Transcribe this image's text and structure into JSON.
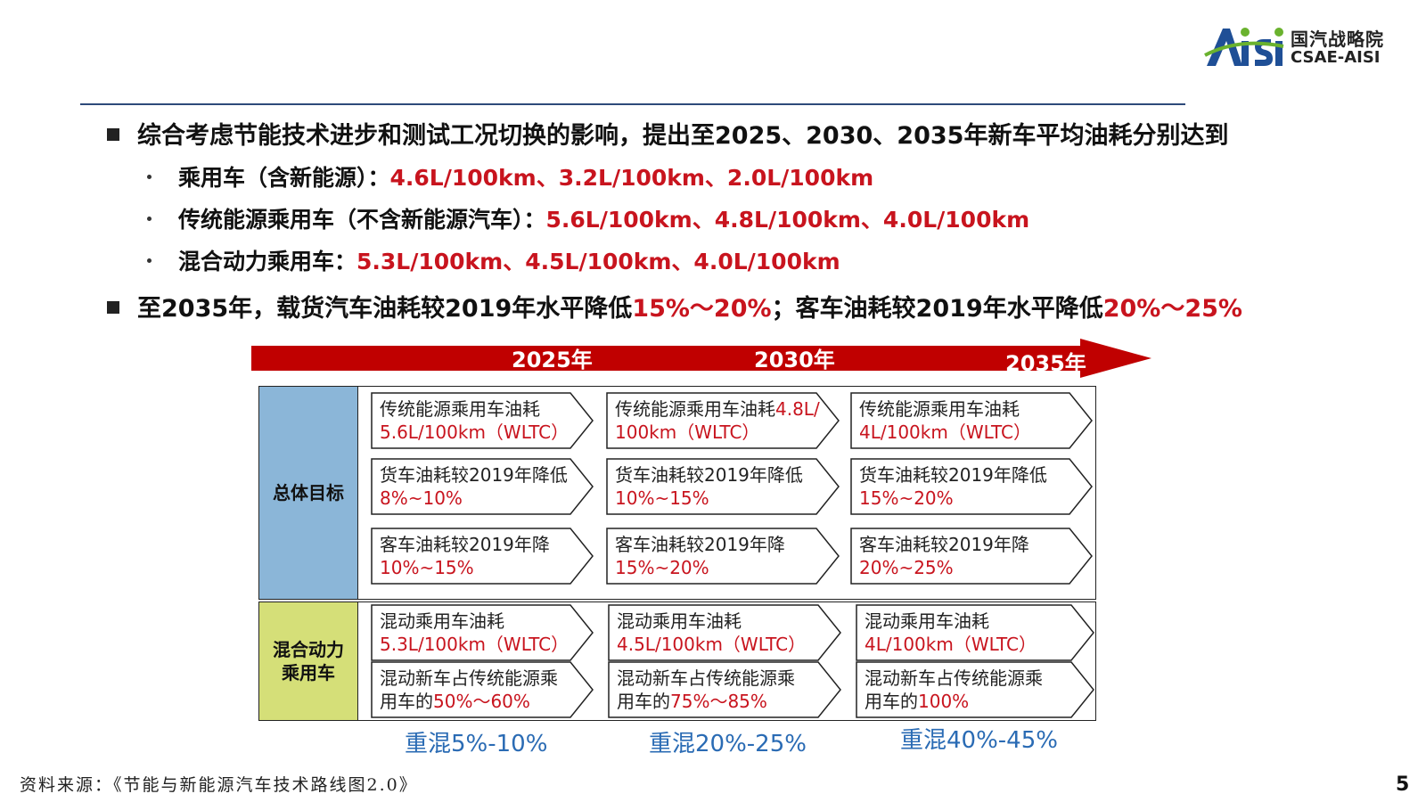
{
  "logo": {
    "mark": "Aisi",
    "cn": "国汽战略院",
    "en": "CSAE-AISI"
  },
  "bullets": {
    "main1": "综合考虑节能技术进步和测试工况切换的影响，提出至2025、2030、2035年新车平均油耗分别达到",
    "sub1_label": "乘用车（含新能源）：",
    "sub1_value": "4.6L/100km、3.2L/100km、2.0L/100km",
    "sub2_label": "传统能源乘用车（不含新能源汽车）：",
    "sub2_value": "5.6L/100km、4.8L/100km、4.0L/100km",
    "sub3_label": "混合动力乘用车：",
    "sub3_value": "5.3L/100km、4.5L/100km、4.0L/100km",
    "main2_a": "至2035年，载货汽车油耗较2019年水平降低",
    "main2_b": "15%～20%",
    "main2_c": "；客车油耗较2019年水平降低",
    "main2_d": "20%～25%"
  },
  "timeline": {
    "years": [
      "2025年",
      "2030年",
      "2035年"
    ]
  },
  "rows": {
    "overall_label": "总体目标",
    "hybrid_label_1": "混合动力",
    "hybrid_label_2": "乘用车"
  },
  "cells": {
    "c2025_1": {
      "l1": "传统能源乘用车油耗",
      "l2": "5.6L/100km（WLTC）"
    },
    "c2030_1": {
      "l1a": "传统能源乘用车油耗",
      "l1b": "4.8L/",
      "l2": "100km（WLTC）"
    },
    "c2035_1": {
      "l1": "传统能源乘用车油耗",
      "l2": "4L/100km（WLTC）"
    },
    "c2025_2": {
      "l1": "货车油耗较2019年降低",
      "l2": "8%~10%"
    },
    "c2030_2": {
      "l1": "货车油耗较2019年降低",
      "l2": "10%~15%"
    },
    "c2035_2": {
      "l1": "货车油耗较2019年降低",
      "l2": "15%~20%"
    },
    "c2025_3": {
      "l1": "客车油耗较2019年降",
      "l2": "10%~15%"
    },
    "c2030_3": {
      "l1": "客车油耗较2019年降",
      "l2": "15%~20%"
    },
    "c2035_3": {
      "l1": "客车油耗较2019年降",
      "l2": "20%~25%"
    },
    "h2025_1": {
      "l1": "混动乘用车油耗",
      "l2": "5.3L/100km（WLTC）"
    },
    "h2030_1": {
      "l1": "混动乘用车油耗",
      "l2": "4.5L/100km（WLTC）"
    },
    "h2035_1": {
      "l1": "混动乘用车油耗",
      "l2": "4L/100km（WLTC）"
    },
    "h2025_2": {
      "l1": "混动新车占传统能源乘",
      "l2a": "用车的",
      "l2b": "50%～60%"
    },
    "h2030_2": {
      "l1": "混动新车占传统能源乘",
      "l2a": "用车的",
      "l2b": "75%～85%"
    },
    "h2035_2": {
      "l1": "混动新车占传统能源乘",
      "l2a": "用车的",
      "l2b": "100%"
    }
  },
  "heavy_hybrid": [
    "重混5%-10%",
    "重混20%-25%",
    "重混40%-45%"
  ],
  "footer": {
    "source": "资料来源：《节能与新能源汽车技术路线图2.0》",
    "page": "5"
  },
  "colors": {
    "accent_red": "#c8141e",
    "timeline_red": "#c00000",
    "blue_label": "#8bb6d8",
    "green_label": "#d5df78",
    "heavy_blue": "#2a6bb4"
  }
}
